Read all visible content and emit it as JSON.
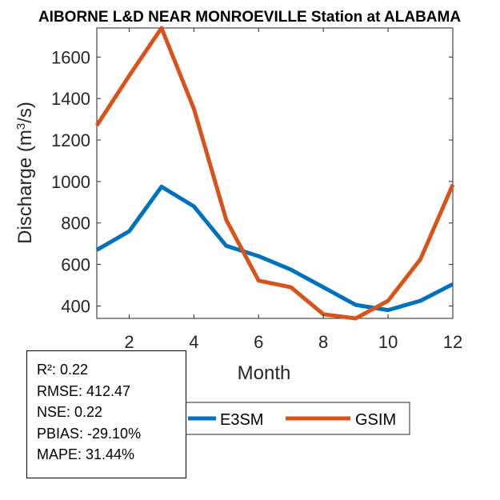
{
  "chart_data": {
    "type": "line",
    "title": "AIBORNE L&D NEAR MONROEVILLE  Station at  ALABAMA",
    "xlabel": "Month",
    "ylabel_main": "Discharge (m",
    "ylabel_sup": "3",
    "ylabel_end": "/s)",
    "xlim": [
      1,
      12
    ],
    "ylim": [
      340,
      1740
    ],
    "xticks": [
      2,
      4,
      6,
      8,
      10,
      12
    ],
    "yticks": [
      400,
      600,
      800,
      1000,
      1200,
      1400,
      1600
    ],
    "x": [
      1,
      2,
      3,
      4,
      5,
      6,
      7,
      8,
      9,
      10,
      11,
      12
    ],
    "series": [
      {
        "name": "E3SM",
        "color": "#0072BD",
        "values": [
          670,
          760,
          975,
          880,
          690,
          640,
          575,
          490,
          405,
          380,
          425,
          505
        ]
      },
      {
        "name": "GSIM",
        "color": "#D95319",
        "values": [
          1270,
          1510,
          1740,
          1350,
          815,
          522,
          490,
          360,
          340,
          425,
          625,
          985
        ]
      }
    ]
  },
  "stats": {
    "r2": "R²: 0.22",
    "rmse": "RMSE: 412.47",
    "nse": "NSE: 0.22",
    "pbias": "PBIAS: -29.10%",
    "mape": "MAPE: 31.44%"
  }
}
